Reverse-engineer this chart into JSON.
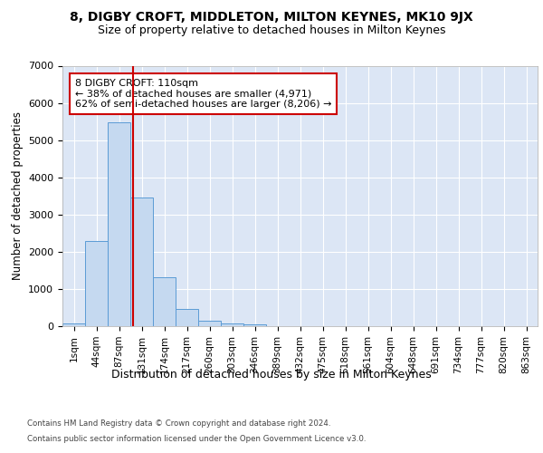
{
  "title": "8, DIGBY CROFT, MIDDLETON, MILTON KEYNES, MK10 9JX",
  "subtitle": "Size of property relative to detached houses in Milton Keynes",
  "xlabel": "Distribution of detached houses by size in Milton Keynes",
  "ylabel": "Number of detached properties",
  "footer_line1": "Contains HM Land Registry data © Crown copyright and database right 2024.",
  "footer_line2": "Contains public sector information licensed under the Open Government Licence v3.0.",
  "bar_categories": [
    "1sqm",
    "44sqm",
    "87sqm",
    "131sqm",
    "174sqm",
    "217sqm",
    "260sqm",
    "303sqm",
    "346sqm",
    "389sqm",
    "432sqm",
    "475sqm",
    "518sqm",
    "561sqm",
    "604sqm",
    "648sqm",
    "691sqm",
    "734sqm",
    "777sqm",
    "820sqm",
    "863sqm"
  ],
  "bar_values": [
    80,
    2300,
    5470,
    3450,
    1320,
    470,
    155,
    85,
    55,
    0,
    0,
    0,
    0,
    0,
    0,
    0,
    0,
    0,
    0,
    0,
    0
  ],
  "bar_color": "#c5d9f0",
  "bar_edge_color": "#5b9bd5",
  "property_line_x": 2.62,
  "property_line_color": "#cc0000",
  "annotation_text": "8 DIGBY CROFT: 110sqm\n← 38% of detached houses are smaller (4,971)\n62% of semi-detached houses are larger (8,206) →",
  "annotation_box_color": "#cc0000",
  "annotation_text_color": "#000000",
  "ylim": [
    0,
    7000
  ],
  "fig_background_color": "#ffffff",
  "plot_background_color": "#dce6f5",
  "grid_color": "#ffffff",
  "title_fontsize": 10,
  "subtitle_fontsize": 9
}
